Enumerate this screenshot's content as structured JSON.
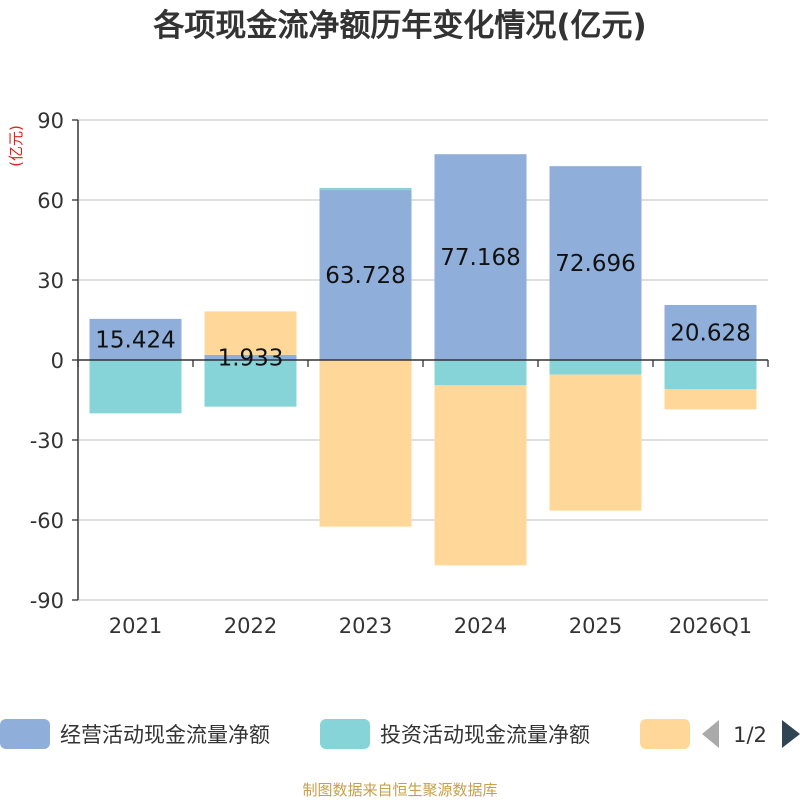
{
  "chart_data": {
    "type": "bar",
    "stacked": true,
    "title": "各项现金流净额历年变化情况(亿元)",
    "ylabel": "(亿元)",
    "ylim": [
      -90,
      90
    ],
    "yticks": [
      90,
      60,
      30,
      0,
      -30,
      -60,
      -90
    ],
    "categories": [
      "2021",
      "2022",
      "2023",
      "2024",
      "2025",
      "2026Q1"
    ],
    "grid": true,
    "legend_position": "bottom",
    "series": [
      {
        "name": "经营活动现金流量净额",
        "color": "#8FAEDA",
        "values": [
          15.424,
          1.933,
          63.728,
          77.168,
          72.696,
          20.628
        ],
        "labels": [
          "15.424",
          "1.933",
          "63.728",
          "77.168",
          "72.696",
          "20.628"
        ]
      },
      {
        "name": "投资活动现金流量净额",
        "color": "#86D4D7",
        "values": [
          -20,
          -17.5,
          0.8,
          -9.5,
          -5.5,
          -11
        ]
      },
      {
        "name": "",
        "color": "#FFD899",
        "values": [
          0,
          16.3,
          -62.5,
          -67.5,
          -51,
          -7.5
        ]
      }
    ]
  },
  "legend": {
    "page": "1/2"
  },
  "source": "制图数据来自恒生聚源数据库"
}
